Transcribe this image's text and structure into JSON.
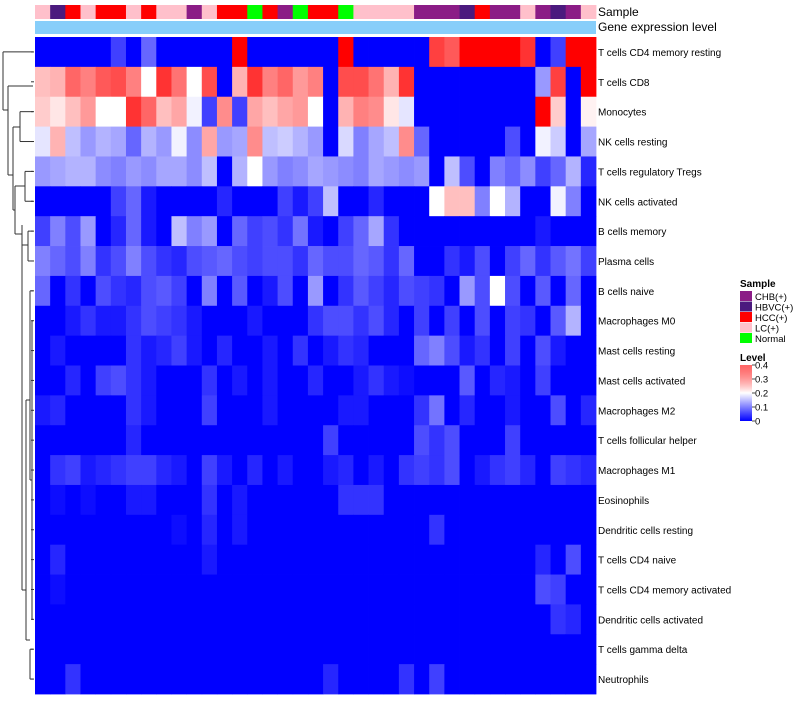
{
  "chart_data": {
    "type": "heatmap",
    "title": "",
    "annotation_labels": [
      "Sample",
      "Gene expression level"
    ],
    "rows": [
      "T cells CD4 memory resting",
      "T cells CD8",
      "Monocytes",
      "NK cells resting",
      "T cells regulatory  Tregs",
      "NK cells activated",
      "B cells memory",
      "Plasma cells",
      "B cells naive",
      "Macrophages M0",
      "Mast cells resting",
      "Mast cells activated",
      "Macrophages M2",
      "T cells follicular helper",
      "Macrophages M1",
      "Eosinophils",
      "Dendritic cells resting",
      "T cells CD4 naive",
      "T cells CD4 memory activated",
      "Dendritic cells activated",
      "T cells gamma delta",
      "Neutrophils"
    ],
    "sample_groups": [
      "LC(+)",
      "HBVC(+)",
      "HCC(+)",
      "LC(+)",
      "HCC(+)",
      "HCC(+)",
      "LC(+)",
      "HCC(+)",
      "LC(+)",
      "LC(+)",
      "CHB(+)",
      "LC(+)",
      "HCC(+)",
      "HCC(+)",
      "Normal",
      "HCC(+)",
      "CHB(+)",
      "Normal",
      "HCC(+)",
      "HCC(+)",
      "Normal",
      "LC(+)",
      "LC(+)",
      "LC(+)",
      "LC(+)",
      "CHB(+)",
      "CHB(+)",
      "CHB(+)",
      "HBVC(+)",
      "HCC(+)",
      "CHB(+)",
      "CHB(+)",
      "LC(+)",
      "CHB(+)",
      "HBVC(+)",
      "CHB(+)",
      "LC(+)"
    ],
    "values": [
      [
        0,
        0,
        0,
        0,
        0,
        0.05,
        0,
        0.08,
        0,
        0,
        0,
        0,
        0,
        0.4,
        0,
        0,
        0,
        0,
        0,
        0,
        0.4,
        0,
        0,
        0,
        0,
        0,
        0.35,
        0.33,
        0.4,
        0.4,
        0.4,
        0.4,
        0.36,
        0,
        0.05,
        0.4,
        0.4
      ],
      [
        0.25,
        0.26,
        0.32,
        0.3,
        0.33,
        0.34,
        0.3,
        0.2,
        0.36,
        0.31,
        0.2,
        0.34,
        0,
        0.26,
        0.36,
        0.3,
        0.32,
        0.28,
        0.3,
        0,
        0.34,
        0.34,
        0.31,
        0.26,
        0.36,
        0,
        0,
        0,
        0,
        0,
        0,
        0,
        0,
        0.12,
        0.35,
        0,
        0.4
      ],
      [
        0.24,
        0.22,
        0.25,
        0.28,
        0.2,
        0.2,
        0.36,
        0.32,
        0.25,
        0.27,
        0.19,
        0.05,
        0.29,
        0.05,
        0.27,
        0.25,
        0.27,
        0.28,
        0.2,
        0,
        0.26,
        0.3,
        0.29,
        0.22,
        0.18,
        0,
        0,
        0,
        0,
        0,
        0,
        0,
        0,
        0.4,
        0.24,
        0,
        0.21
      ],
      [
        0.18,
        0.26,
        0.15,
        0.12,
        0.14,
        0.13,
        0.08,
        0.14,
        0.12,
        0.19,
        0.11,
        0.27,
        0.12,
        0.13,
        0.29,
        0.15,
        0.16,
        0.14,
        0.12,
        0,
        0.17,
        0.1,
        0.13,
        0.15,
        0.29,
        0.08,
        0,
        0,
        0,
        0,
        0,
        0.06,
        0,
        0.19,
        0.16,
        0,
        0.13
      ],
      [
        0.12,
        0.13,
        0.14,
        0.14,
        0.11,
        0.1,
        0.12,
        0.11,
        0.13,
        0.13,
        0.11,
        0.15,
        0,
        0.14,
        0.2,
        0.12,
        0.1,
        0.11,
        0.13,
        0.12,
        0.11,
        0.1,
        0.13,
        0.12,
        0.11,
        0.12,
        0,
        0.15,
        0.06,
        0,
        0.1,
        0.08,
        0.11,
        0.05,
        0.08,
        0.14,
        0.03
      ],
      [
        0,
        0,
        0,
        0,
        0,
        0.05,
        0.08,
        0.02,
        0,
        0,
        0,
        0,
        0.03,
        0,
        0,
        0,
        0.05,
        0.02,
        0.05,
        0.15,
        0,
        0,
        0.03,
        0,
        0,
        0,
        0.2,
        0.25,
        0.25,
        0.1,
        0.2,
        0.14,
        0,
        0,
        0.19,
        0.1,
        0
      ],
      [
        0.05,
        0.1,
        0.06,
        0.12,
        0,
        0.03,
        0.08,
        0.02,
        0,
        0.15,
        0.1,
        0.12,
        0,
        0.08,
        0.05,
        0.06,
        0.04,
        0.09,
        0.02,
        0,
        0.05,
        0.08,
        0.13,
        0.04,
        0,
        0,
        0,
        0,
        0,
        0,
        0,
        0,
        0,
        0.02,
        0,
        0,
        0
      ],
      [
        0.1,
        0.08,
        0.06,
        0.1,
        0.04,
        0.06,
        0.1,
        0.06,
        0.04,
        0.03,
        0.06,
        0.07,
        0.08,
        0.06,
        0.05,
        0.06,
        0.06,
        0.04,
        0.08,
        0.06,
        0.06,
        0.08,
        0.07,
        0.04,
        0.08,
        0,
        0,
        0.04,
        0.02,
        0.06,
        0,
        0.05,
        0.08,
        0.04,
        0.07,
        0.09,
        0.05
      ],
      [
        0.08,
        0,
        0.04,
        0,
        0.06,
        0.04,
        0.03,
        0.06,
        0.07,
        0.05,
        0,
        0.1,
        0,
        0.07,
        0,
        0.02,
        0.06,
        0,
        0.12,
        0,
        0.04,
        0.07,
        0.05,
        0.03,
        0.06,
        0.05,
        0.04,
        0,
        0.12,
        0.06,
        0.2,
        0.06,
        0,
        0.07,
        0,
        0.08,
        0
      ],
      [
        0,
        0,
        0.02,
        0.04,
        0.02,
        0.02,
        0.04,
        0.06,
        0.05,
        0.04,
        0.02,
        0,
        0,
        0,
        0.02,
        0,
        0,
        0,
        0.04,
        0.06,
        0.06,
        0.04,
        0.06,
        0.03,
        0,
        0.05,
        0,
        0.05,
        0,
        0.06,
        0,
        0.05,
        0.04,
        0,
        0.07,
        0.14,
        0
      ],
      [
        0,
        0.02,
        0,
        0,
        0,
        0,
        0.04,
        0.02,
        0.03,
        0.05,
        0.02,
        0,
        0.03,
        0,
        0,
        0.02,
        0,
        0.04,
        0,
        0.02,
        0.04,
        0.03,
        0,
        0,
        0,
        0.08,
        0.1,
        0.06,
        0.02,
        0.04,
        0,
        0.05,
        0,
        0.06,
        0.02,
        0,
        0
      ],
      [
        0,
        0,
        0.03,
        0,
        0.05,
        0.06,
        0.04,
        0.02,
        0,
        0,
        0,
        0.04,
        0,
        0.02,
        0,
        0.02,
        0,
        0,
        0.03,
        0,
        0,
        0.02,
        0.04,
        0.02,
        0.01,
        0,
        0,
        0,
        0.07,
        0,
        0.03,
        0.02,
        0,
        0.05,
        0,
        0,
        0
      ],
      [
        0.02,
        0.03,
        0,
        0,
        0,
        0,
        0.04,
        0.02,
        0,
        0,
        0,
        0.05,
        0,
        0,
        0,
        0.02,
        0,
        0,
        0,
        0,
        0.02,
        0.02,
        0,
        0,
        0,
        0.04,
        0.09,
        0,
        0.03,
        0,
        0,
        0.02,
        0,
        0,
        0.06,
        0,
        0.03
      ],
      [
        0,
        0,
        0,
        0,
        0,
        0,
        0.03,
        0,
        0,
        0,
        0,
        0,
        0,
        0,
        0,
        0,
        0,
        0,
        0,
        0.05,
        0,
        0,
        0,
        0,
        0,
        0.06,
        0.04,
        0.06,
        0,
        0,
        0,
        0.05,
        0,
        0,
        0,
        0,
        0
      ],
      [
        0,
        0.04,
        0.05,
        0.02,
        0.03,
        0.04,
        0.05,
        0.05,
        0.03,
        0.02,
        0,
        0.05,
        0.02,
        0,
        0.03,
        0,
        0.02,
        0,
        0,
        0.02,
        0.03,
        0,
        0.02,
        0,
        0.04,
        0.05,
        0.04,
        0.06,
        0,
        0.02,
        0.04,
        0.05,
        0.03,
        0,
        0.05,
        0.04,
        0.03
      ],
      [
        0,
        0.01,
        0,
        0.01,
        0,
        0,
        0.02,
        0.02,
        0,
        0,
        0,
        0.04,
        0,
        0.02,
        0,
        0,
        0,
        0,
        0,
        0,
        0.04,
        0.04,
        0.04,
        0,
        0,
        0,
        0,
        0,
        0,
        0,
        0,
        0,
        0,
        0,
        0,
        0,
        0
      ],
      [
        0,
        0,
        0,
        0,
        0,
        0,
        0,
        0,
        0,
        0.01,
        0,
        0.03,
        0,
        0.02,
        0,
        0,
        0,
        0,
        0,
        0,
        0,
        0,
        0,
        0,
        0,
        0,
        0.04,
        0,
        0,
        0,
        0,
        0,
        0,
        0,
        0,
        0,
        0
      ],
      [
        0,
        0.03,
        0,
        0,
        0,
        0,
        0,
        0,
        0,
        0,
        0,
        0.02,
        0,
        0,
        0,
        0,
        0,
        0,
        0,
        0,
        0,
        0,
        0,
        0,
        0,
        0,
        0,
        0,
        0,
        0,
        0,
        0,
        0,
        0.03,
        0,
        0.06,
        0
      ],
      [
        0,
        0.01,
        0,
        0,
        0,
        0,
        0,
        0,
        0,
        0,
        0,
        0,
        0,
        0,
        0,
        0,
        0,
        0,
        0,
        0,
        0,
        0,
        0,
        0,
        0,
        0,
        0,
        0,
        0,
        0,
        0,
        0,
        0,
        0.06,
        0.05,
        0,
        0
      ],
      [
        0,
        0,
        0,
        0,
        0,
        0,
        0,
        0,
        0,
        0,
        0,
        0,
        0,
        0,
        0,
        0,
        0,
        0,
        0,
        0,
        0,
        0,
        0,
        0,
        0,
        0,
        0,
        0,
        0,
        0,
        0,
        0,
        0,
        0,
        0.04,
        0.03,
        0
      ],
      [
        0,
        0,
        0,
        0,
        0,
        0,
        0,
        0,
        0,
        0,
        0,
        0,
        0,
        0,
        0,
        0,
        0,
        0,
        0,
        0,
        0,
        0,
        0,
        0,
        0,
        0,
        0,
        0,
        0,
        0,
        0,
        0,
        0,
        0,
        0,
        0,
        0
      ],
      [
        0,
        0,
        0.04,
        0,
        0,
        0,
        0,
        0,
        0,
        0,
        0,
        0,
        0,
        0,
        0,
        0,
        0,
        0,
        0,
        0.03,
        0,
        0,
        0,
        0,
        0.04,
        0,
        0.05,
        0,
        0,
        0,
        0,
        0,
        0,
        0,
        0,
        0,
        0
      ]
    ],
    "legend": {
      "sample_title": "Sample",
      "sample_entries": [
        {
          "label": "CHB(+)",
          "color": "#8B1C86"
        },
        {
          "label": "HBVC(+)",
          "color": "#4B1A7E"
        },
        {
          "label": "HCC(+)",
          "color": "#FF0000"
        },
        {
          "label": "LC(+)",
          "color": "#FFC0CB"
        },
        {
          "label": "Normal",
          "color": "#00FF00"
        }
      ],
      "level_title": "Level",
      "level_ticks": [
        "0.4",
        "0.3",
        "0.2",
        "0.1",
        "0"
      ],
      "level_tick_values": [
        0.4,
        0.3,
        0.2,
        0.1,
        0
      ],
      "level_range": [
        0,
        0.4
      ]
    },
    "colors": {
      "low": "#0000FF",
      "mid": "#FFFFFF",
      "high": "#FF0000",
      "expression_bar": "#87CEFA"
    }
  }
}
